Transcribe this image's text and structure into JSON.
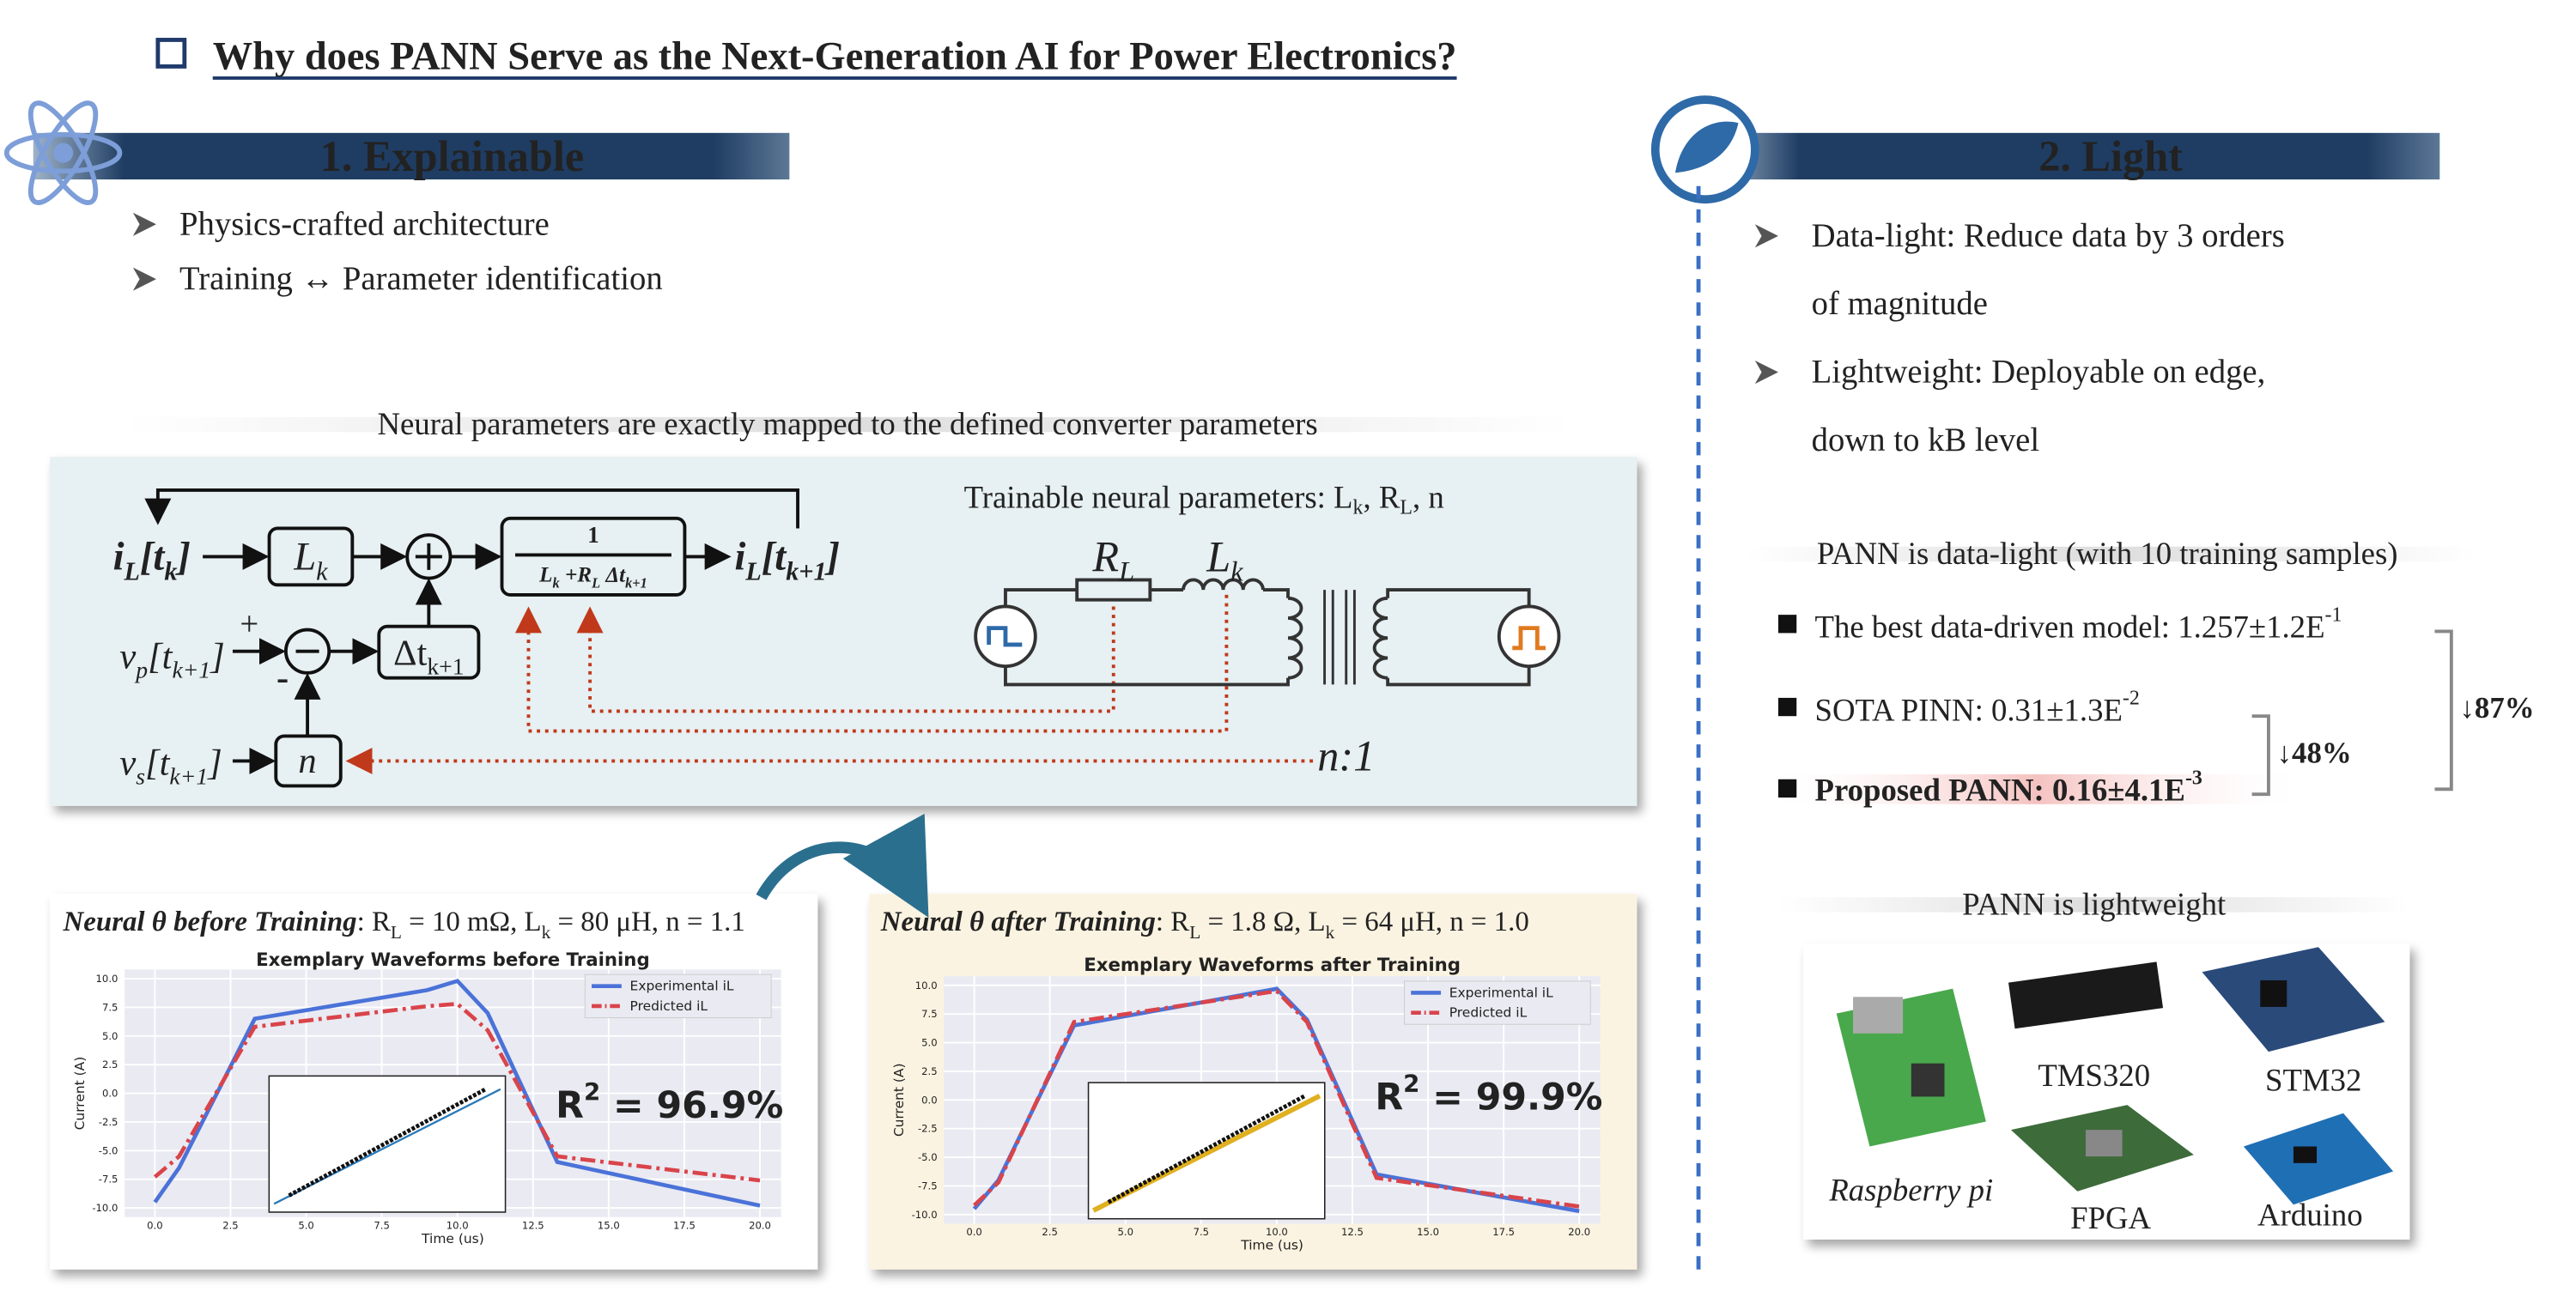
{
  "header": {
    "title": "Why does PANN Serve as the Next-Generation AI for Power Electronics?"
  },
  "explainable": {
    "heading": "1.   Explainable",
    "bullets": [
      "Physics-crafted architecture",
      "Training ↔ Parameter identification"
    ],
    "caption": "Neural parameters are exactly mapped to the defined converter parameters",
    "diagram": {
      "trainable": [
        "Trainable neural parameters: L",
        {
          "sub": "k"
        },
        ", R",
        {
          "sub": "L"
        },
        ", n"
      ],
      "in": [
        "i",
        {
          "sub": "L"
        },
        "[t",
        {
          "sub": "k"
        },
        "]"
      ],
      "lk_block": [
        "L",
        {
          "sub": "k"
        }
      ],
      "frac_num": "1",
      "frac_den": [
        "L",
        {
          "sub": "k"
        },
        " +R",
        {
          "sub": "L"
        },
        " Δt",
        {
          "sub": "k+1"
        }
      ],
      "out": [
        "i",
        {
          "sub": "L"
        },
        "[t",
        {
          "sub": "k+1"
        },
        "]"
      ],
      "vp": [
        "v",
        {
          "sub": "p"
        },
        "[t",
        {
          "sub": "k+1"
        },
        "]"
      ],
      "plus": "+",
      "minus": "-",
      "dt_block": [
        "Δt",
        {
          "sub": "k+1"
        }
      ],
      "vs": [
        "v",
        {
          "sub": "s"
        },
        "[t",
        {
          "sub": "k+1"
        },
        "]"
      ],
      "n_block": "n",
      "rl": [
        "R",
        {
          "sub": "L"
        }
      ],
      "lk": [
        "L",
        {
          "sub": "k"
        }
      ],
      "ratio": "n:1"
    }
  },
  "panels": [
    {
      "lead": "Neural θ before Training",
      "rest": [
        ": R",
        {
          "sub": "L"
        },
        " = 10 mΩ, L",
        {
          "sub": "k"
        },
        " = 80 μH, n = 1.1"
      ]
    },
    {
      "lead": "Neural θ after Training",
      "rest": [
        ": R",
        {
          "sub": "L"
        },
        " = 1.8 Ω, L",
        {
          "sub": "k"
        },
        " = 64 μH, n = 1.0"
      ]
    }
  ],
  "chart_data": [
    {
      "type": "line",
      "title": "Exemplary Waveforms before Training",
      "x_label": "Time (us)",
      "y_label": "Current (A)",
      "xlim": [
        -1,
        20.7
      ],
      "ylim": [
        -10.8,
        10.8
      ],
      "xticks": [
        {
          "value": 0,
          "label": "0.0"
        },
        {
          "value": 2.5,
          "label": "2.5"
        },
        {
          "value": 5,
          "label": "5.0"
        },
        {
          "value": 7.5,
          "label": "7.5"
        },
        {
          "value": 10,
          "label": "10.0"
        },
        {
          "value": 12.5,
          "label": "12.5"
        },
        {
          "value": 15,
          "label": "15.0"
        },
        {
          "value": 17.5,
          "label": "17.5"
        },
        {
          "value": 20,
          "label": "20.0"
        }
      ],
      "yticks": [
        {
          "value": -10,
          "label": "-10.0"
        },
        {
          "value": -7.5,
          "label": "-7.5"
        },
        {
          "value": -5,
          "label": "-5.0"
        },
        {
          "value": -2.5,
          "label": "-2.5"
        },
        {
          "value": 0,
          "label": "0.0"
        },
        {
          "value": 2.5,
          "label": "2.5"
        },
        {
          "value": 5,
          "label": "5.0"
        },
        {
          "value": 7.5,
          "label": "7.5"
        },
        {
          "value": 10,
          "label": "10.0"
        }
      ],
      "grid": true,
      "legend": "upper right",
      "x": [
        0,
        0.8,
        3.3,
        9,
        10,
        11,
        13.3,
        20
      ],
      "series": [
        {
          "name": "Experimental iL",
          "color": "#4a72d8",
          "linestyle": "solid",
          "values": [
            -9.5,
            -6.5,
            6.5,
            9,
            9.8,
            7,
            -6,
            -9.8
          ]
        },
        {
          "name": "Predicted iL",
          "color": "#d9444a",
          "linestyle": "dashdot",
          "values": [
            -7.3,
            -5.5,
            5.8,
            7.6,
            7.8,
            5.5,
            -5.5,
            -7.6
          ]
        }
      ],
      "annotation": [
        "R",
        {
          "sup": "2"
        },
        " = 96.9%"
      ]
    },
    {
      "type": "line",
      "title": "Exemplary Waveforms after Training",
      "x_label": "Time (us)",
      "y_label": "Current (A)",
      "xlim": [
        -1,
        20.7
      ],
      "ylim": [
        -10.8,
        10.8
      ],
      "xticks": [
        {
          "value": 0,
          "label": "0.0"
        },
        {
          "value": 2.5,
          "label": "2.5"
        },
        {
          "value": 5,
          "label": "5.0"
        },
        {
          "value": 7.5,
          "label": "7.5"
        },
        {
          "value": 10,
          "label": "10.0"
        },
        {
          "value": 12.5,
          "label": "12.5"
        },
        {
          "value": 15,
          "label": "15.0"
        },
        {
          "value": 17.5,
          "label": "17.5"
        },
        {
          "value": 20,
          "label": "20.0"
        }
      ],
      "yticks": [
        {
          "value": -10,
          "label": "-10.0"
        },
        {
          "value": -7.5,
          "label": "-7.5"
        },
        {
          "value": -5,
          "label": "-5.0"
        },
        {
          "value": -2.5,
          "label": "-2.5"
        },
        {
          "value": 0,
          "label": "0.0"
        },
        {
          "value": 2.5,
          "label": "2.5"
        },
        {
          "value": 5,
          "label": "5.0"
        },
        {
          "value": 7.5,
          "label": "7.5"
        },
        {
          "value": 10,
          "label": "10.0"
        }
      ],
      "grid": true,
      "legend": "upper right",
      "x": [
        0,
        0.8,
        3.3,
        10,
        11,
        13.3,
        20
      ],
      "series": [
        {
          "name": "Experimental iL",
          "color": "#4a72d8",
          "linestyle": "solid",
          "values": [
            -9.5,
            -7,
            6.5,
            9.7,
            7,
            -6.5,
            -9.7
          ]
        },
        {
          "name": "Predicted iL",
          "color": "#d9444a",
          "linestyle": "dashdot",
          "values": [
            -9.2,
            -7.2,
            6.8,
            9.5,
            6.8,
            -6.8,
            -9.3
          ]
        }
      ],
      "annotation": [
        "R",
        {
          "sup": "2"
        },
        " = 99.9%"
      ]
    }
  ],
  "light": {
    "heading": "2.   Light",
    "bullets": [
      [
        "Data-light: Reduce data by 3 orders",
        "of magnitude"
      ],
      [
        "Lightweight: Deployable on edge,",
        "down to kB level"
      ]
    ],
    "datalight_caption": "PANN is data-light (with 10 training samples)",
    "results": [
      [
        "The best data-driven model: 1.257±1.2E",
        {
          "sup": "-1"
        }
      ],
      [
        "SOTA PINN: 0.31±1.3E",
        {
          "sup": "-2"
        }
      ],
      [
        "Proposed PANN: 0.16±4.1E",
        {
          "sup": "-3"
        }
      ]
    ],
    "drop_48": "↓48%",
    "drop_87": "↓87%",
    "lightweight_caption": "PANN is lightweight",
    "devices": [
      "Raspberry pi",
      "TMS320",
      "STM32",
      "FPGA",
      "Arduino"
    ]
  }
}
